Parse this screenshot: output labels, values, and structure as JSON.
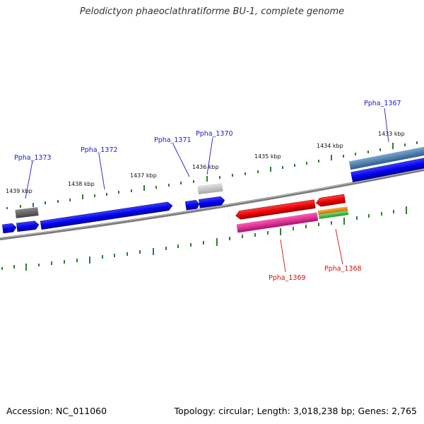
{
  "title": "Pelodictyon phaeoclathratiforme BU-1, complete genome",
  "footer": {
    "accession": "Accession: NC_011060",
    "topology": "Topology: circular; Length: 3,018,238 bp; Genes: 2,765"
  },
  "colors": {
    "backbone": "#7a7a7a",
    "tick": "#2e7d32",
    "forward_gene": "#0000ee",
    "reverse_gene": "#ee0000",
    "forward_label": "#1a1acc",
    "reverse_label": "#cc1111",
    "rna_gray": "#6a6a6a",
    "light_gray": "#c8c8c8",
    "steel_blue": "#4a7fb0",
    "magenta": "#e0208f",
    "orange": "#f08a10",
    "green": "#2fbf3a"
  },
  "kbp_labels": [
    "1433 kbp",
    "1434 kbp",
    "1435 kbp",
    "1436 kbp",
    "1437 kbp",
    "1438 kbp",
    "1439 kbp"
  ],
  "gene_labels_forward": [
    "Ppha_1367",
    "Ppha_1370",
    "Ppha_1371",
    "Ppha_1372",
    "Ppha_1373"
  ],
  "gene_labels_reverse": [
    "Ppha_1368",
    "Ppha_1369"
  ]
}
